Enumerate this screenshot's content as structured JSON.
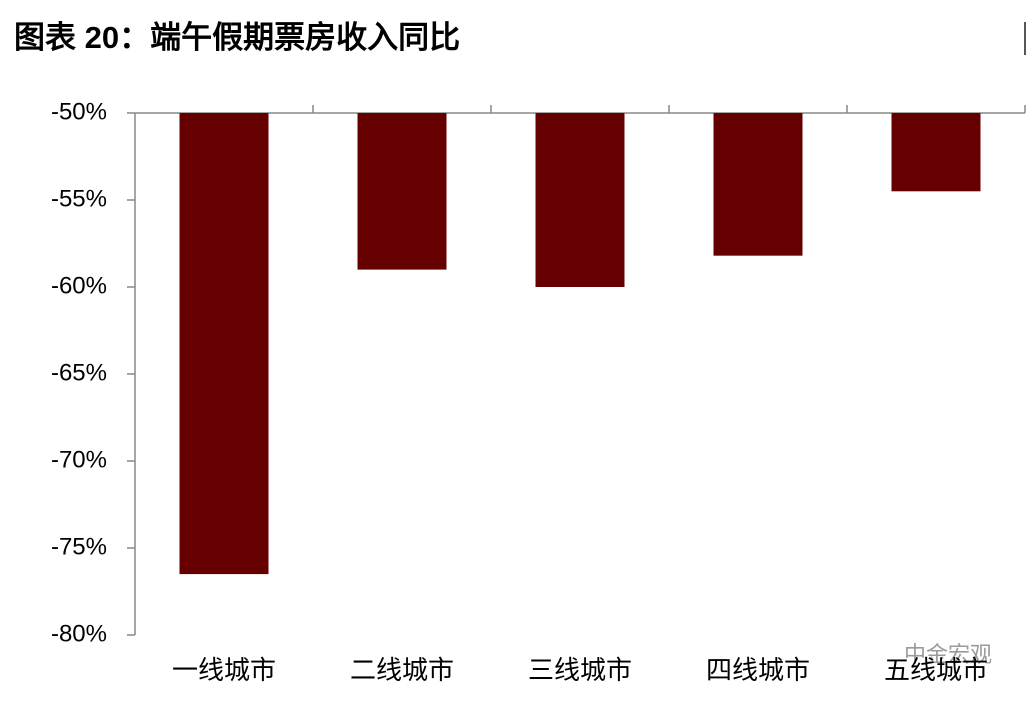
{
  "chart_data": {
    "type": "bar",
    "title": "图表 20：端午假期票房收入同比",
    "categories": [
      "一线城市",
      "二线城市",
      "三线城市",
      "四线城市",
      "五线城市"
    ],
    "values": [
      -76.5,
      -59,
      -60,
      -58.2,
      -54.5
    ],
    "color": "#660000",
    "ylim": [
      -80,
      -50
    ],
    "yticks": [
      {
        "value": -80,
        "label": "-80%"
      },
      {
        "value": -75,
        "label": "-75%"
      },
      {
        "value": -70,
        "label": "-70%"
      },
      {
        "value": -65,
        "label": "-65%"
      },
      {
        "value": -60,
        "label": "-60%"
      },
      {
        "value": -55,
        "label": "-55%"
      },
      {
        "value": -50,
        "label": "-50%"
      }
    ],
    "grid": false,
    "watermark": "中金宏观"
  }
}
